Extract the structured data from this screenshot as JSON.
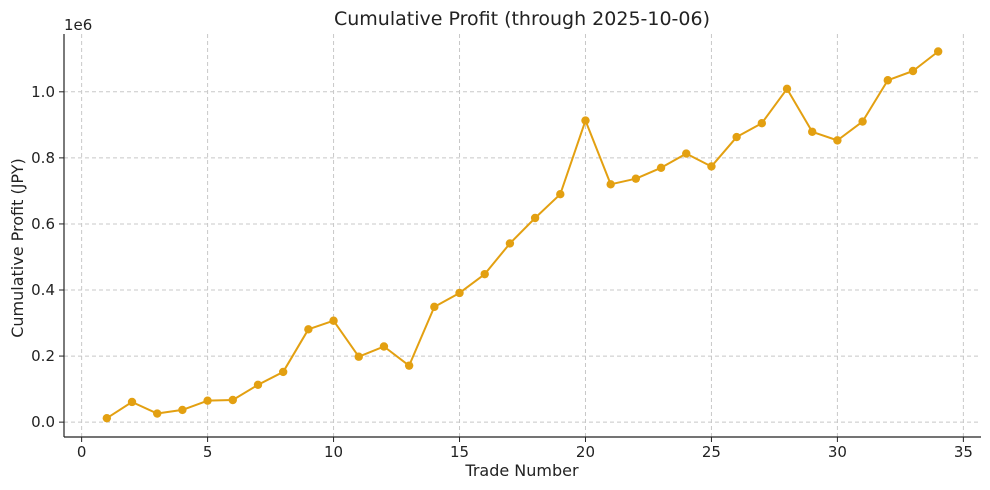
{
  "chart_data": {
    "type": "line",
    "title": "Cumulative Profit (through 2025-10-06)",
    "xlabel": "Trade Number",
    "ylabel": "Cumulative Profit (JPY)",
    "offset_label": "1e6",
    "xlim": [
      -0.7,
      35.7
    ],
    "ylim": [
      -0.045,
      1.175
    ],
    "y_scale_note": "values in units of 1e6 JPY",
    "x_ticks": [
      0,
      5,
      10,
      15,
      20,
      25,
      30,
      35
    ],
    "y_ticks": [
      0.0,
      0.2,
      0.4,
      0.6,
      0.8,
      1.0
    ],
    "y_tick_labels": [
      "0.0",
      "0.2",
      "0.4",
      "0.6",
      "0.8",
      "1.0"
    ],
    "grid": true,
    "color": "#E3A011",
    "series": [
      {
        "x": [
          1,
          2,
          3,
          4,
          5,
          6,
          7,
          8,
          9,
          10,
          11,
          12,
          13,
          14,
          15,
          16,
          17,
          18,
          19,
          20,
          21,
          22,
          23,
          24,
          25,
          26,
          27,
          28,
          29,
          30,
          31,
          32,
          33,
          34
        ],
        "values": [
          0.012,
          0.061,
          0.026,
          0.037,
          0.065,
          0.067,
          0.113,
          0.152,
          0.281,
          0.307,
          0.198,
          0.229,
          0.171,
          0.349,
          0.391,
          0.448,
          0.541,
          0.618,
          0.69,
          0.913,
          0.72,
          0.737,
          0.77,
          0.813,
          0.774,
          0.863,
          0.905,
          1.009,
          0.879,
          0.853,
          0.91,
          1.035,
          1.063,
          1.122
        ]
      }
    ]
  }
}
